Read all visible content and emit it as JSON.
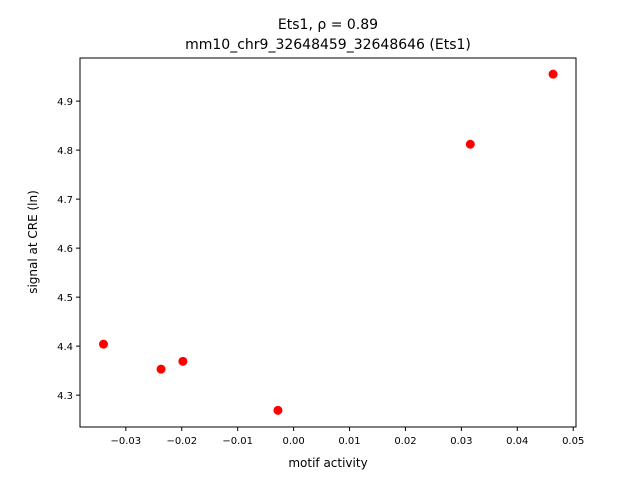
{
  "chart_data": {
    "type": "scatter",
    "title": "Ets1, ρ = 0.89",
    "subtitle": "mm10_chr9_32648459_32648646 (Ets1)",
    "x_label": "motif activity",
    "y_label": "signal at CRE (ln)",
    "series": [
      {
        "color": "#ff0000",
        "x": [
          -0.034,
          -0.0237,
          -0.0198,
          -0.0028,
          0.0316,
          0.0464
        ],
        "values": [
          4.404,
          4.353,
          4.369,
          4.269,
          4.812,
          4.955
        ]
      }
    ],
    "xlim": [
      -0.0382,
      0.0505
    ],
    "ylim": [
      4.235,
      4.988
    ],
    "xticks": [
      {
        "value": -0.03,
        "label": "−0.03"
      },
      {
        "value": -0.02,
        "label": "−0.02"
      },
      {
        "value": -0.01,
        "label": "−0.01"
      },
      {
        "value": 0,
        "label": "0.00"
      },
      0.01,
      0.02,
      0.03,
      0.04,
      0.05
    ],
    "yticks": [
      4.3,
      4.4,
      4.5,
      4.6,
      4.7,
      4.8,
      4.9
    ]
  }
}
